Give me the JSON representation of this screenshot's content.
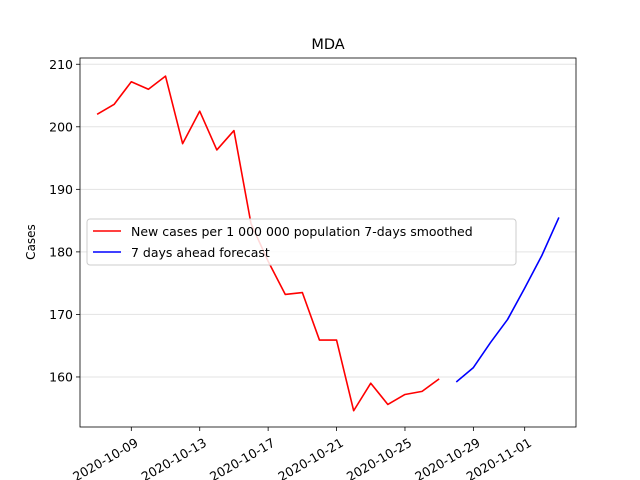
{
  "chart_data": {
    "type": "line",
    "title": "MDA",
    "xlabel": "",
    "ylabel": "Cases",
    "xlim": [
      "2020-10-06",
      "2020-11-04"
    ],
    "ylim": [
      152,
      211
    ],
    "grid": "horizontal",
    "legend_position": "center-left",
    "x_tick_labels": [
      "2020-10-09",
      "2020-10-13",
      "2020-10-17",
      "2020-10-21",
      "2020-10-25",
      "2020-10-29",
      "2020-11-01"
    ],
    "y_tick_labels": [
      "160",
      "170",
      "180",
      "190",
      "200",
      "210"
    ],
    "series": [
      {
        "name": "New cases per 1 000 000 population 7-days smoothed",
        "color": "#ff0000",
        "x": [
          "2020-10-07",
          "2020-10-08",
          "2020-10-09",
          "2020-10-10",
          "2020-10-11",
          "2020-10-12",
          "2020-10-13",
          "2020-10-14",
          "2020-10-15",
          "2020-10-16",
          "2020-10-17",
          "2020-10-18",
          "2020-10-19",
          "2020-10-20",
          "2020-10-21",
          "2020-10-22",
          "2020-10-23",
          "2020-10-24",
          "2020-10-25",
          "2020-10-26",
          "2020-10-27"
        ],
        "y": [
          202.0,
          203.6,
          207.2,
          206.0,
          208.1,
          197.3,
          202.5,
          196.3,
          199.4,
          184.5,
          178.5,
          173.2,
          173.5,
          165.9,
          165.9,
          154.6,
          159.0,
          155.6,
          157.2,
          157.7,
          159.7
        ]
      },
      {
        "name": "7 days ahead forecast",
        "color": "#0000ff",
        "x": [
          "2020-10-28",
          "2020-10-29",
          "2020-10-30",
          "2020-10-31",
          "2020-11-01",
          "2020-11-02",
          "2020-11-03"
        ],
        "y": [
          159.2,
          161.5,
          165.5,
          169.2,
          174.2,
          179.4,
          185.5
        ]
      }
    ]
  }
}
